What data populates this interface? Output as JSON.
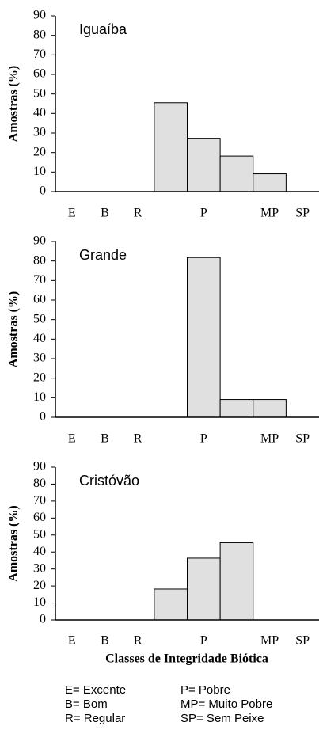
{
  "chart_data": [
    {
      "type": "bar",
      "title": "Iguaíba",
      "y_label": "Amostras (%)",
      "categories": [
        "E",
        "B",
        "R",
        null,
        "P",
        null,
        "MP",
        "SP"
      ],
      "values": [
        0,
        0,
        0,
        45.5,
        27.3,
        18.2,
        9.1,
        0
      ],
      "color": "#e0e0e0",
      "ylim": [
        0,
        90
      ],
      "yticks": [
        0,
        10,
        20,
        30,
        40,
        50,
        60,
        70,
        80,
        90
      ]
    },
    {
      "type": "bar",
      "title": "Grande",
      "y_label": "Amostras (%)",
      "categories": [
        "E",
        "B",
        "R",
        null,
        "P",
        null,
        "MP",
        "SP"
      ],
      "values": [
        0,
        0,
        0,
        0,
        81.8,
        9.1,
        9.1,
        0
      ],
      "color": "#e0e0e0",
      "ylim": [
        0,
        90
      ],
      "yticks": [
        0,
        10,
        20,
        30,
        40,
        50,
        60,
        70,
        80,
        90
      ]
    },
    {
      "type": "bar",
      "title": "Cristóvão",
      "y_label": "Amostras (%)",
      "x_label": "Classes de Integridade Biótica",
      "categories": [
        "E",
        "B",
        "R",
        null,
        "P",
        null,
        "MP",
        "SP"
      ],
      "values": [
        0,
        0,
        0,
        18.2,
        36.4,
        45.5,
        0,
        0
      ],
      "color": "#e0e0e0",
      "ylim": [
        0,
        90
      ],
      "yticks": [
        0,
        10,
        20,
        30,
        40,
        50,
        60,
        70,
        80,
        90
      ],
      "annotations": [
        "E= Excente",
        "P= Pobre",
        "B= Bom",
        "MP= Muito Pobre",
        "R= Regular",
        "SP= Sem Peixe"
      ]
    }
  ]
}
